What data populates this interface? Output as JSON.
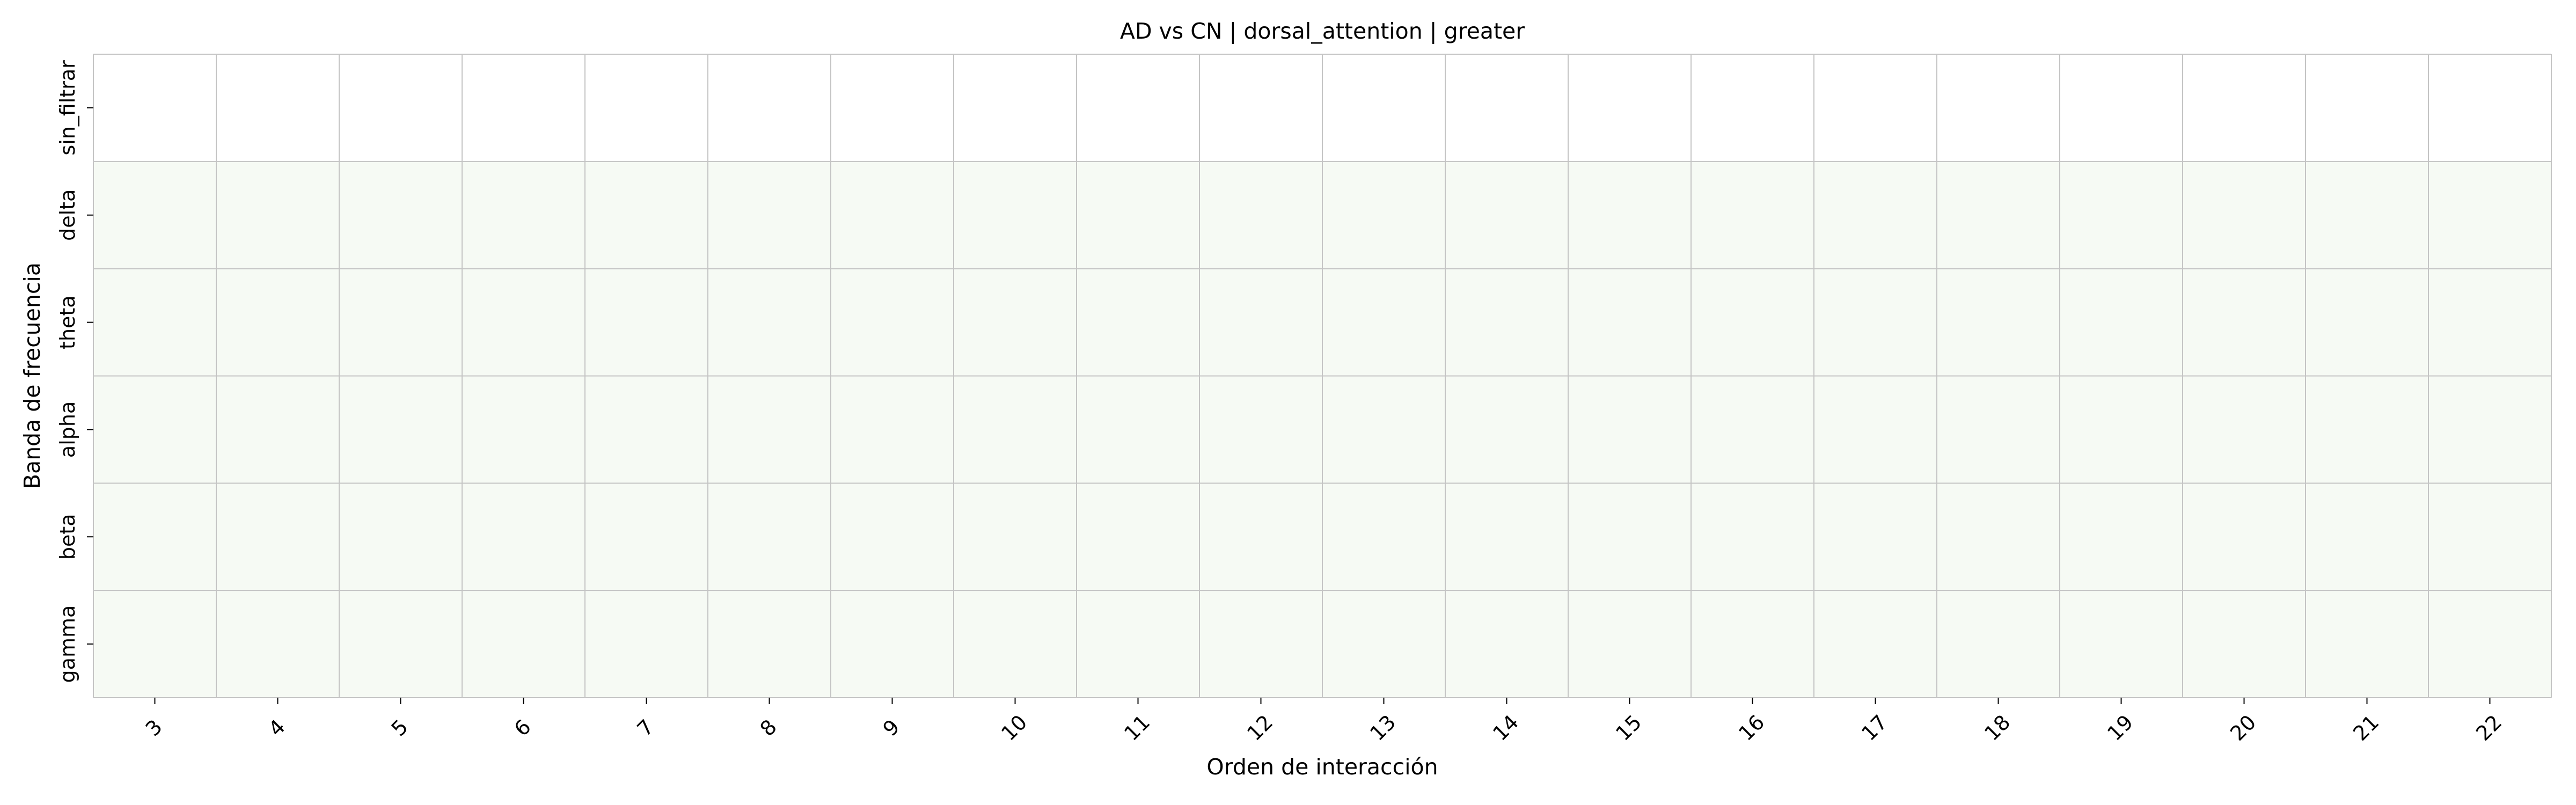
{
  "chart_data": {
    "type": "heatmap",
    "title": "AD vs CN | dorsal_attention | greater",
    "xlabel": "Orden de interacción",
    "ylabel": "Banda de frecuencia",
    "x": [
      3,
      4,
      5,
      6,
      7,
      8,
      9,
      10,
      11,
      12,
      13,
      14,
      15,
      16,
      17,
      18,
      19,
      20,
      21,
      22
    ],
    "x_tick_labels": [
      "3",
      "4",
      "5",
      "6",
      "7",
      "8",
      "9",
      "10",
      "11",
      "12",
      "13",
      "14",
      "15",
      "16",
      "17",
      "18",
      "19",
      "20",
      "21",
      "22"
    ],
    "y_tick_labels": [
      "sin_filtrar",
      "delta",
      "theta",
      "alpha",
      "beta",
      "gamma"
    ],
    "values": [
      [
        0,
        0,
        0,
        0,
        0,
        0,
        0,
        0,
        0,
        0,
        0,
        0,
        0,
        0,
        0,
        0,
        0,
        0,
        0,
        0
      ],
      [
        1,
        1,
        1,
        1,
        1,
        1,
        1,
        1,
        1,
        1,
        1,
        1,
        1,
        1,
        1,
        1,
        1,
        1,
        1,
        1
      ],
      [
        1,
        1,
        1,
        1,
        1,
        1,
        1,
        1,
        1,
        1,
        1,
        1,
        1,
        1,
        1,
        1,
        1,
        1,
        1,
        1
      ],
      [
        1,
        1,
        1,
        1,
        1,
        1,
        1,
        1,
        1,
        1,
        1,
        1,
        1,
        1,
        1,
        1,
        1,
        1,
        1,
        1
      ],
      [
        1,
        1,
        1,
        1,
        1,
        1,
        1,
        1,
        1,
        1,
        1,
        1,
        1,
        1,
        1,
        1,
        1,
        1,
        1,
        1
      ],
      [
        1,
        1,
        1,
        1,
        1,
        1,
        1,
        1,
        1,
        1,
        1,
        1,
        1,
        1,
        1,
        1,
        1,
        1,
        1,
        1
      ]
    ],
    "colors": {
      "empty": "#ffffff",
      "low": "#f6faf4",
      "grid": "#c4c4c4",
      "tick": "#000000"
    },
    "grid": true
  }
}
